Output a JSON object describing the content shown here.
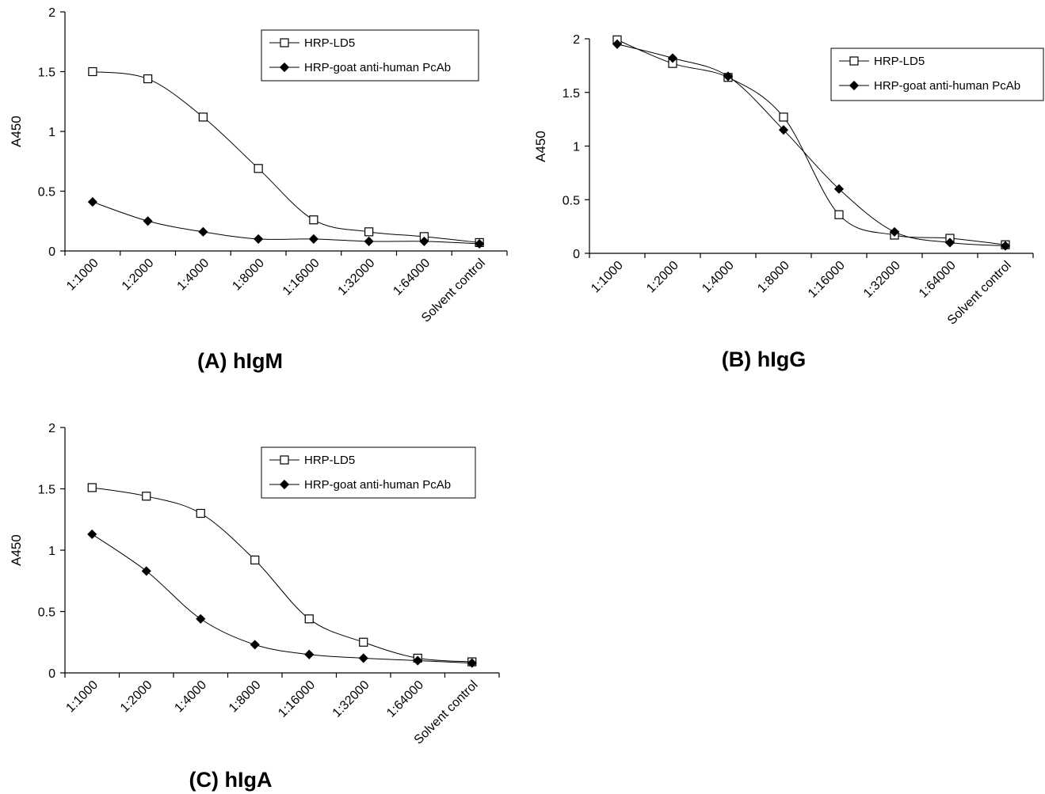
{
  "chart_data": [
    {
      "type": "line",
      "title": "(A) hIgM",
      "ylabel": "A450",
      "xlabel": "",
      "ylim": [
        0,
        2
      ],
      "yticks": [
        "0",
        "0.5",
        "1",
        "1.5",
        "2"
      ],
      "categories": [
        "1:1000",
        "1:2000",
        "1:4000",
        "1:8000",
        "1:16000",
        "1:32000",
        "1:64000",
        "Solvent control"
      ],
      "legend": "top-right",
      "grid": false,
      "series": [
        {
          "name": "HRP-LD5",
          "marker": "open-square",
          "values": [
            1.5,
            1.44,
            1.12,
            0.69,
            0.26,
            0.16,
            0.12,
            0.07
          ]
        },
        {
          "name": "HRP-goat anti-human PcAb",
          "marker": "filled-diamond",
          "values": [
            0.41,
            0.25,
            0.16,
            0.1,
            0.1,
            0.08,
            0.08,
            0.06
          ]
        }
      ]
    },
    {
      "type": "line",
      "title": "(B) hIgG",
      "ylabel": "A450",
      "xlabel": "",
      "ylim": [
        0,
        2
      ],
      "yticks": [
        "0",
        "0.5",
        "1",
        "1.5",
        "2"
      ],
      "categories": [
        "1:1000",
        "1:2000",
        "1:4000",
        "1:8000",
        "1:16000",
        "1:32000",
        "1:64000",
        "Solvent control"
      ],
      "legend": "top-right",
      "grid": false,
      "series": [
        {
          "name": "HRP-LD5",
          "marker": "open-square",
          "values": [
            1.99,
            1.77,
            1.64,
            1.27,
            0.36,
            0.17,
            0.14,
            0.08
          ]
        },
        {
          "name": "HRP-goat anti-human PcAb",
          "marker": "filled-diamond",
          "values": [
            1.95,
            1.82,
            1.65,
            1.15,
            0.6,
            0.2,
            0.1,
            0.07
          ]
        }
      ]
    },
    {
      "type": "line",
      "title": "(C) hIgA",
      "ylabel": "A450",
      "xlabel": "",
      "ylim": [
        0,
        2
      ],
      "yticks": [
        "0",
        "0.5",
        "1",
        "1.5",
        "2"
      ],
      "categories": [
        "1:1000",
        "1:2000",
        "1:4000",
        "1:8000",
        "1:16000",
        "1:32000",
        "1:64000",
        "Solvent control"
      ],
      "legend": "top-right",
      "grid": false,
      "series": [
        {
          "name": "HRP-LD5",
          "marker": "open-square",
          "values": [
            1.51,
            1.44,
            1.3,
            0.92,
            0.44,
            0.25,
            0.12,
            0.09
          ]
        },
        {
          "name": "HRP-goat anti-human PcAb",
          "marker": "filled-diamond",
          "values": [
            1.13,
            0.83,
            0.44,
            0.23,
            0.15,
            0.12,
            0.1,
            0.08
          ]
        }
      ]
    }
  ]
}
